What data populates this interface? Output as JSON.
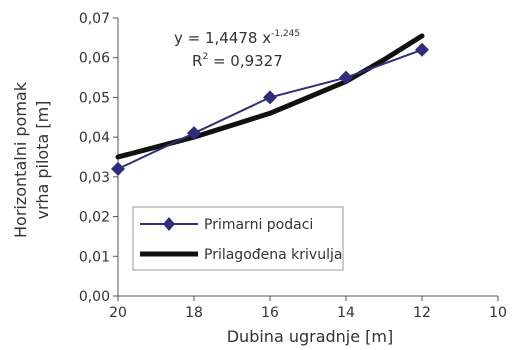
{
  "chart_data": {
    "type": "line",
    "title": "",
    "xlabel": "Dubina ugradnje [m]",
    "ylabel_lines": [
      "Horizontalni pomak",
      "vrha pilota [m]"
    ],
    "xlim": [
      20,
      10
    ],
    "ylim": [
      0,
      0.07
    ],
    "x_ticks": [
      "20",
      "18",
      "16",
      "14",
      "12",
      "10"
    ],
    "y_ticks": [
      "0,00",
      "0,01",
      "0,02",
      "0,03",
      "0,04",
      "0,05",
      "0,06",
      "0,07"
    ],
    "series": [
      {
        "name": "Primarni podaci",
        "marker": "diamond",
        "color": "#2e2e7a",
        "x": [
          20,
          18,
          16,
          14,
          12
        ],
        "y": [
          0.032,
          0.041,
          0.05,
          0.055,
          0.062
        ]
      },
      {
        "name": "Prilagođena krivulja",
        "marker": "none",
        "color": "#111111",
        "x": [
          20,
          19,
          18,
          17,
          16,
          15,
          14,
          13,
          12
        ],
        "y": [
          0.035,
          0.0375,
          0.04,
          0.043,
          0.046,
          0.05,
          0.054,
          0.0595,
          0.0655
        ]
      }
    ],
    "trendline_equation": {
      "prefix": "y = 1,4478 x",
      "exponent": "-1,245",
      "r2_label": "R",
      "r2_exp": "2",
      "r2_value": " = 0,9327"
    },
    "legend_position": "bottom-left",
    "grid": false
  }
}
